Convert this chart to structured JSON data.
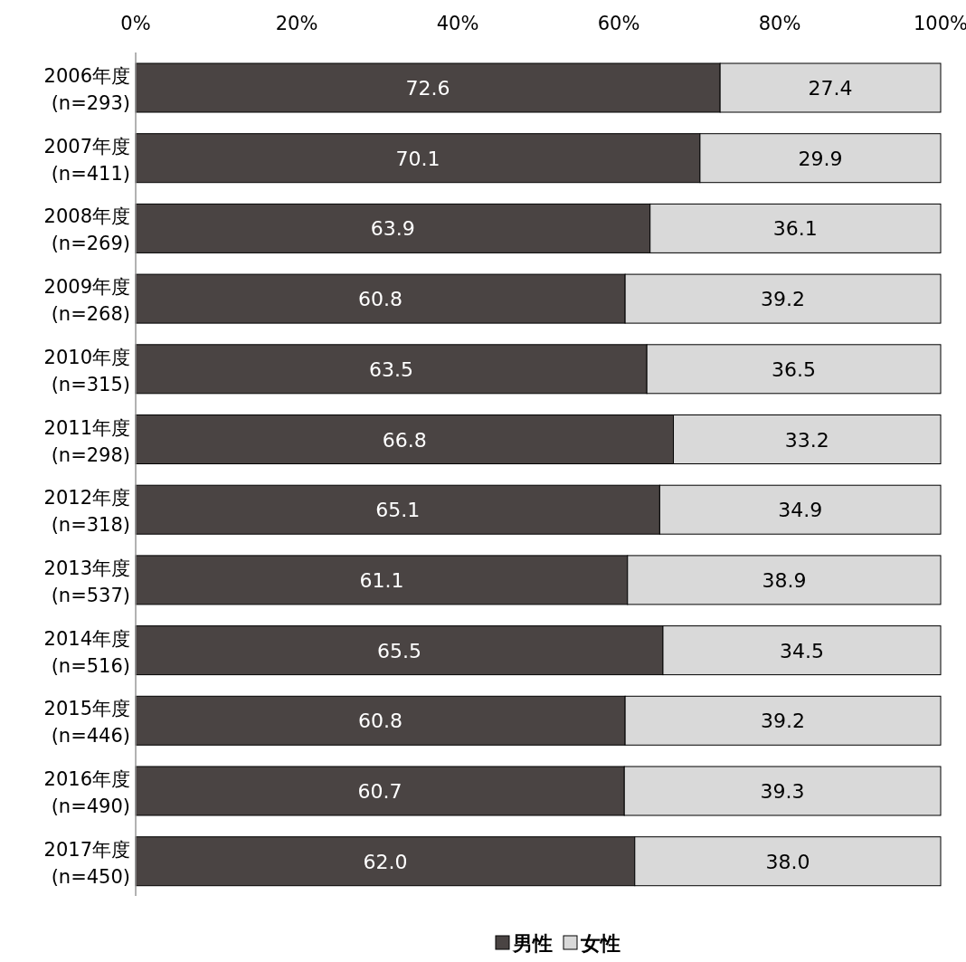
{
  "chart_data": {
    "type": "bar",
    "orientation": "horizontal",
    "stacked": true,
    "legend": "bottom",
    "categories": [
      "2006年度 (n=293)",
      "2007年度 (n=411)",
      "2008年度 (n=269)",
      "2009年度 (n=268)",
      "2010年度 (n=315)",
      "2011年度 (n=298)",
      "2012年度 (n=318)",
      "2013年度 (n=537)",
      "2014年度 (n=516)",
      "2015年度 (n=446)",
      "2016年度 (n=490)",
      "2017年度 (n=450)"
    ],
    "xlim": [
      0,
      100
    ],
    "xticks": [
      {
        "value": 0,
        "label": "0%"
      },
      {
        "value": 20,
        "label": "20%"
      },
      {
        "value": 40,
        "label": "40%"
      },
      {
        "value": 60,
        "label": "60%"
      },
      {
        "value": 80,
        "label": "80%"
      },
      {
        "value": 100,
        "label": "100%"
      }
    ],
    "series": [
      {
        "name": "男性",
        "color": "#4a4443",
        "values": [
          72.6,
          70.1,
          63.9,
          60.8,
          63.5,
          66.8,
          65.1,
          61.1,
          65.5,
          60.8,
          60.7,
          62.0
        ],
        "value_labels": [
          "72.6",
          "70.1",
          "63.9",
          "60.8",
          "63.5",
          "66.8",
          "65.1",
          "61.1",
          "65.5",
          "60.8",
          "60.7",
          "62.0"
        ]
      },
      {
        "name": "女性",
        "color": "#d9d9d9",
        "values": [
          27.4,
          29.9,
          36.1,
          39.2,
          36.5,
          33.2,
          34.9,
          38.9,
          34.5,
          39.2,
          39.3,
          38.0
        ],
        "value_labels": [
          "27.4",
          "29.9",
          "36.1",
          "39.2",
          "36.5",
          "33.2",
          "34.9",
          "38.9",
          "34.5",
          "39.2",
          "39.3",
          "38.0"
        ]
      }
    ]
  }
}
